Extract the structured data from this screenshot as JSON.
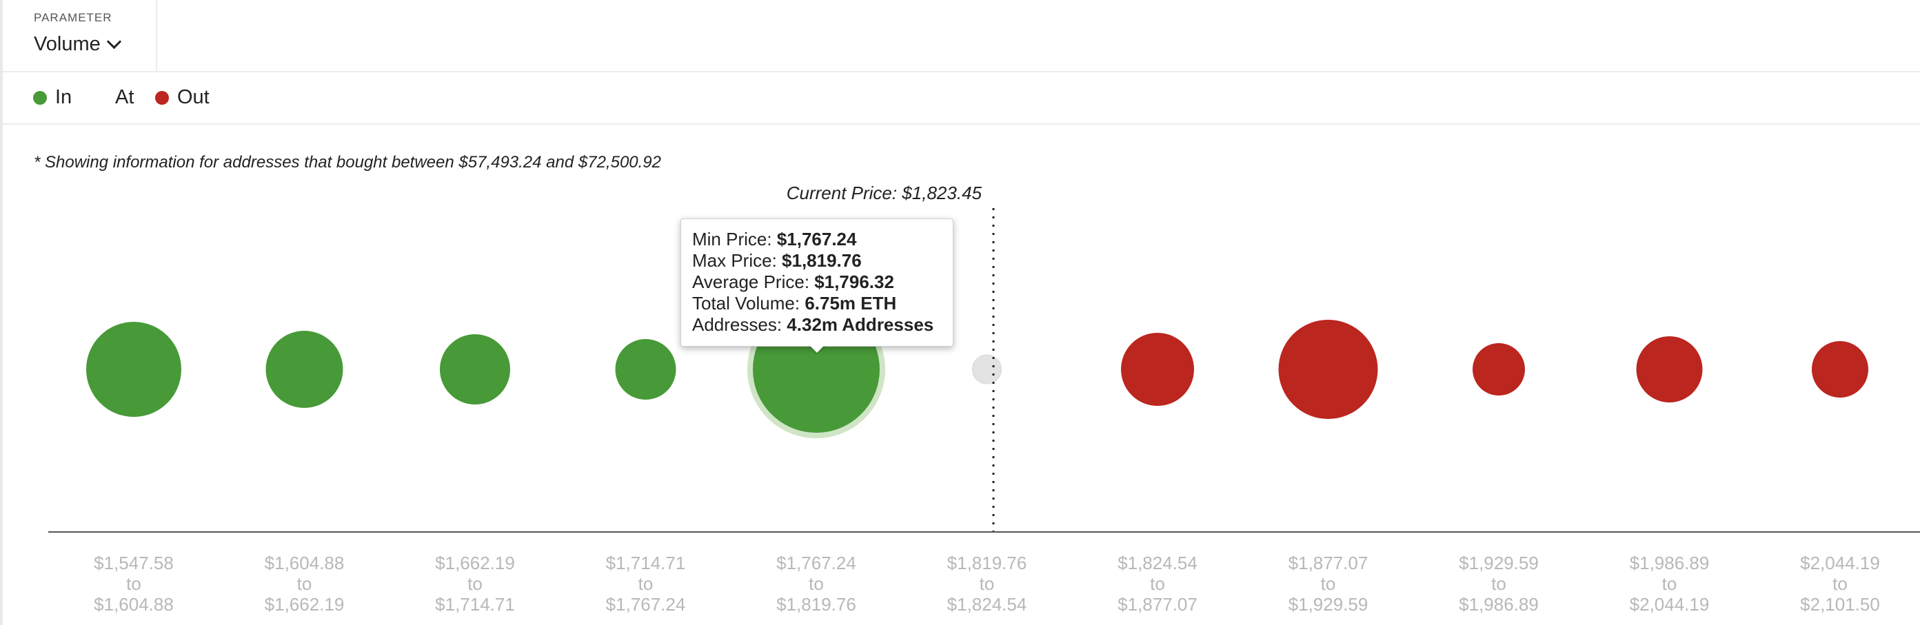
{
  "parameter": {
    "label": "PARAMETER",
    "selected": "Volume"
  },
  "legend": {
    "items": [
      {
        "label": "In",
        "color": "#479a37"
      },
      {
        "label": "At",
        "color": ""
      },
      {
        "label": "Out",
        "color": "#bb261f"
      }
    ]
  },
  "note": "* Showing information for addresses that bought between $57,493.24 and $72,500.92",
  "current_price_label": "Current Price: $1,823.45",
  "tooltip": {
    "min_label": "Min Price: ",
    "min_value": "$1,767.24",
    "max_label": "Max Price: ",
    "max_value": "$1,819.76",
    "avg_label": "Average Price: ",
    "avg_value": "$1,796.32",
    "vol_label": "Total Volume: ",
    "vol_value": "6.75m ETH",
    "addr_label": "Addresses: ",
    "addr_value": "4.32m Addresses"
  },
  "colors": {
    "in": "#479a37",
    "at": "#e3e3e3",
    "out": "#bb261f",
    "highlight_ring": "#cfe5c6"
  },
  "chart_data": {
    "type": "bubble",
    "current_price": 1823.45,
    "highlighted_index": 4,
    "bins": [
      {
        "from": "$1,547.58",
        "to": "$1,604.88",
        "status": "in",
        "volume": 2.0
      },
      {
        "from": "$1,604.88",
        "to": "$1,662.19",
        "status": "in",
        "volume": 1.55
      },
      {
        "from": "$1,662.19",
        "to": "$1,714.71",
        "status": "in",
        "volume": 1.35
      },
      {
        "from": "$1,714.71",
        "to": "$1,767.24",
        "status": "in",
        "volume": 1.1
      },
      {
        "from": "$1,767.24",
        "to": "$1,819.76",
        "status": "in",
        "volume": 6.75
      },
      {
        "from": "$1,819.76",
        "to": "$1,824.54",
        "status": "at",
        "volume": 0.2
      },
      {
        "from": "$1,824.54",
        "to": "$1,877.07",
        "status": "out",
        "volume": 1.45
      },
      {
        "from": "$1,877.07",
        "to": "$1,929.59",
        "status": "out",
        "volume": 2.1
      },
      {
        "from": "$1,929.59",
        "to": "$1,986.89",
        "status": "out",
        "volume": 0.9
      },
      {
        "from": "$1,986.89",
        "to": "$2,044.19",
        "status": "out",
        "volume": 1.25
      },
      {
        "from": "$2,044.19",
        "to": "$2,101.50",
        "status": "out",
        "volume": 1.0
      }
    ],
    "to_word": "to"
  }
}
